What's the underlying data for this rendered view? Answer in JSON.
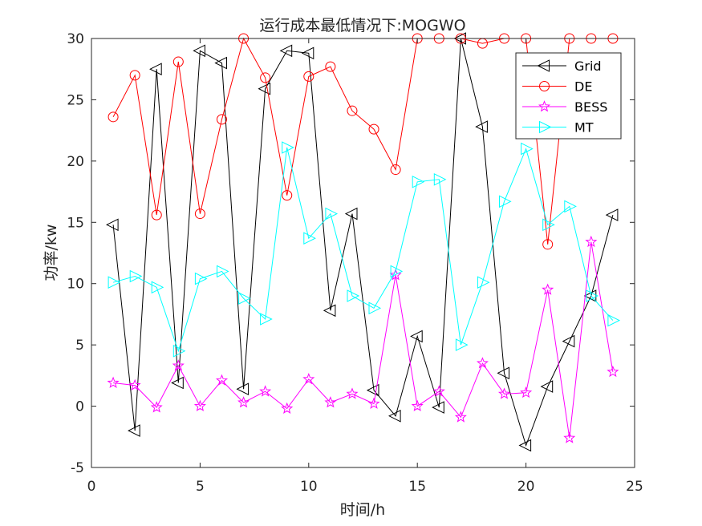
{
  "chart_data": {
    "type": "line",
    "title": "运行成本最低情况下:MOGWO",
    "xlabel": "时间/h",
    "ylabel": "功率/kw",
    "xlim": [
      0,
      25
    ],
    "ylim": [
      -5,
      30
    ],
    "xticks": [
      0,
      5,
      10,
      15,
      20,
      25
    ],
    "yticks": [
      -5,
      0,
      5,
      10,
      15,
      20,
      25,
      30
    ],
    "grid": false,
    "legend_position": "top-right",
    "x": [
      1,
      2,
      3,
      4,
      5,
      6,
      7,
      8,
      9,
      10,
      11,
      12,
      13,
      14,
      15,
      16,
      17,
      18,
      19,
      20,
      21,
      22,
      23,
      24
    ],
    "series": [
      {
        "name": "Grid",
        "color": "#000000",
        "marker": "triangle-left",
        "values": [
          14.8,
          -2.0,
          27.5,
          1.9,
          29.0,
          28.0,
          1.4,
          25.9,
          29.0,
          28.8,
          7.8,
          15.7,
          1.3,
          -0.8,
          5.7,
          -0.1,
          30.0,
          22.8,
          2.7,
          -3.2,
          1.6,
          5.3,
          9.0,
          15.6
        ]
      },
      {
        "name": "DE",
        "color": "#ff0000",
        "marker": "circle",
        "values": [
          23.6,
          27.0,
          15.6,
          28.1,
          15.7,
          23.4,
          30.0,
          26.8,
          17.2,
          26.9,
          27.7,
          24.1,
          22.6,
          19.3,
          30.0,
          30.0,
          30.0,
          29.6,
          30.0,
          30.0,
          13.2,
          30.0,
          30.0,
          30.0
        ]
      },
      {
        "name": "BESS",
        "color": "#ff00ff",
        "marker": "star",
        "values": [
          1.9,
          1.7,
          -0.1,
          3.3,
          0.0,
          2.1,
          0.3,
          1.2,
          -0.2,
          2.2,
          0.3,
          1.0,
          0.2,
          10.7,
          0.0,
          1.2,
          -0.9,
          3.5,
          1.0,
          1.1,
          9.5,
          -2.6,
          13.4,
          2.8
        ]
      },
      {
        "name": "MT",
        "color": "#00ffff",
        "marker": "triangle-right",
        "values": [
          10.1,
          10.6,
          9.7,
          4.5,
          10.4,
          11.0,
          8.8,
          7.1,
          21.1,
          13.7,
          15.7,
          9.0,
          8.0,
          11.0,
          18.3,
          18.5,
          5.0,
          10.1,
          16.7,
          21.0,
          14.8,
          16.3,
          9.0,
          7.0
        ]
      }
    ]
  }
}
